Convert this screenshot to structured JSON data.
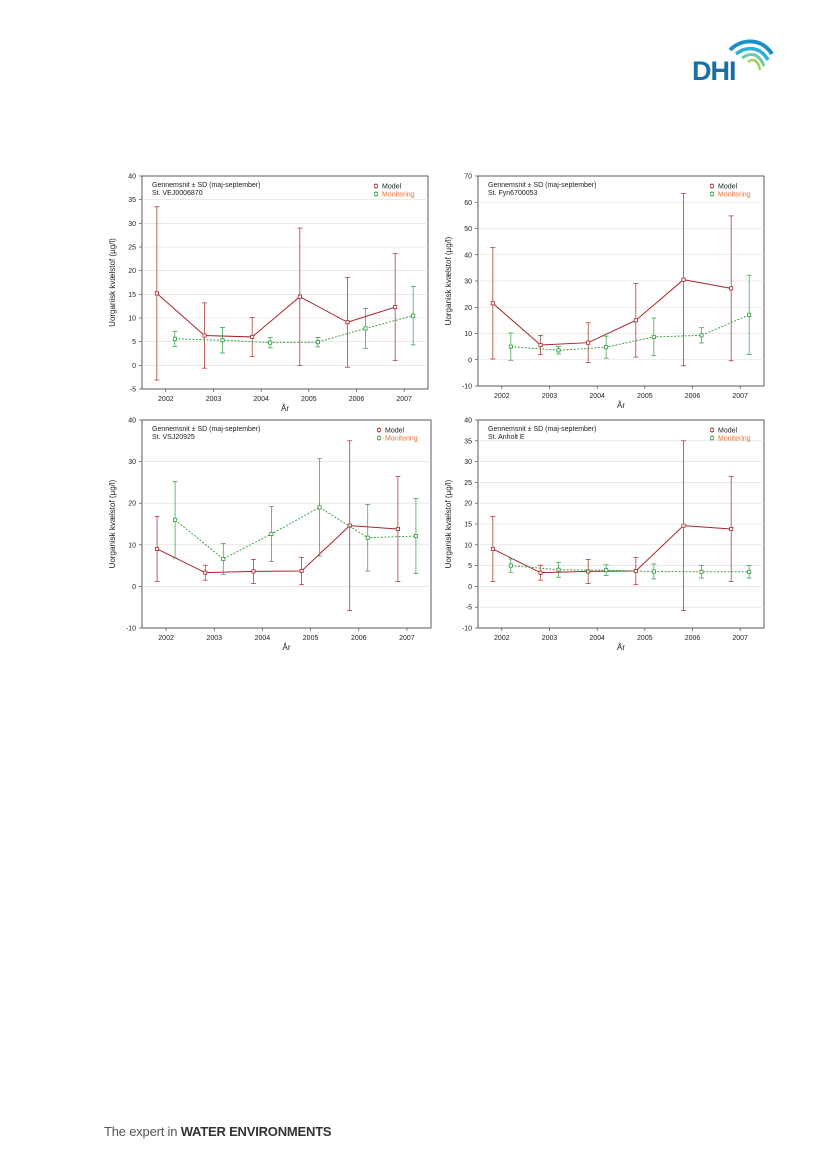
{
  "logo": {
    "text": "DHI"
  },
  "footer": {
    "prefix": "The expert in ",
    "emphasis": "WATER ENVIRONMENTS"
  },
  "legend": {
    "model": "Model",
    "monitoring": "Monitering"
  },
  "colors": {
    "model": "#a5262a",
    "monitoring": "#2f9a3a",
    "monitoring_label": "#f07030"
  },
  "chart_data": [
    {
      "type": "line",
      "title": "Gennemsnit ± SD (maj-september)",
      "subtitle": "St. VEJ0006870",
      "xlabel": "År",
      "ylabel": "Uorganisk kvælstof (µg/l)",
      "categories": [
        "2002",
        "2003",
        "2004",
        "2005",
        "2006",
        "2007"
      ],
      "ylim": [
        -5,
        40
      ],
      "yticks": [
        -5,
        0,
        5,
        10,
        15,
        20,
        25,
        30,
        35,
        40
      ],
      "legend_position": "top-right",
      "series": [
        {
          "name": "Model",
          "values": [
            15.2,
            6.3,
            6.0,
            14.5,
            9.1,
            12.3
          ],
          "sd": [
            18.3,
            6.9,
            4.1,
            14.5,
            9.5,
            11.3
          ]
        },
        {
          "name": "Monitering",
          "values": [
            5.6,
            5.3,
            4.8,
            4.9,
            7.8,
            10.5
          ],
          "sd": [
            1.6,
            2.7,
            1.1,
            1.0,
            4.2,
            6.2
          ]
        }
      ]
    },
    {
      "type": "line",
      "title": "Gennemsnit ± SD (maj-september)",
      "subtitle": "St. Fyn6700053",
      "xlabel": "År",
      "ylabel": "Uorganisk kvælstof (µg/l)",
      "categories": [
        "2002",
        "2003",
        "2004",
        "2005",
        "2006",
        "2007"
      ],
      "ylim": [
        -10,
        70
      ],
      "yticks": [
        -10,
        0,
        10,
        20,
        30,
        40,
        50,
        60,
        70
      ],
      "legend_position": "top-right",
      "series": [
        {
          "name": "Model",
          "values": [
            21.5,
            5.6,
            6.5,
            15.0,
            30.5,
            27.2
          ],
          "sd": [
            21.2,
            3.7,
            7.6,
            14.0,
            32.8,
            27.6
          ]
        },
        {
          "name": "Monitering",
          "values": [
            5.0,
            3.6,
            4.8,
            8.7,
            9.3,
            17.1
          ],
          "sd": [
            5.2,
            1.4,
            4.2,
            7.2,
            2.9,
            15.1
          ]
        }
      ]
    },
    {
      "type": "line",
      "title": "Gennemsnit ± SD (maj-september)",
      "subtitle": "St. VSJ20925",
      "xlabel": "År",
      "ylabel": "Uorganisk kvælstof (µg/l)",
      "categories": [
        "2002",
        "2003",
        "2004",
        "2005",
        "2006",
        "2007"
      ],
      "ylim": [
        -10,
        40
      ],
      "yticks": [
        -10,
        0,
        10,
        20,
        30,
        40
      ],
      "legend_position": "top-right",
      "series": [
        {
          "name": "Model",
          "values": [
            9.0,
            3.3,
            3.6,
            3.7,
            14.6,
            13.8
          ],
          "sd": [
            7.8,
            1.8,
            2.9,
            3.3,
            20.4,
            12.6
          ]
        },
        {
          "name": "Monitering",
          "values": [
            16.0,
            6.6,
            12.6,
            19.0,
            11.7,
            12.1
          ],
          "sd": [
            9.2,
            3.7,
            6.6,
            11.7,
            8.0,
            9.0
          ]
        }
      ]
    },
    {
      "type": "line",
      "title": "Gennemsnit ± SD (maj-september)",
      "subtitle": "St. Anholt E",
      "xlabel": "År",
      "ylabel": "Uorganisk kvælstof (µg/l)",
      "categories": [
        "2002",
        "2003",
        "2004",
        "2005",
        "2006",
        "2007"
      ],
      "ylim": [
        -10,
        40
      ],
      "yticks": [
        -10,
        -5,
        0,
        5,
        10,
        15,
        20,
        25,
        30,
        35,
        40
      ],
      "legend_position": "top-right",
      "series": [
        {
          "name": "Model",
          "values": [
            9.0,
            3.3,
            3.6,
            3.7,
            14.6,
            13.8
          ],
          "sd": [
            7.8,
            1.8,
            2.9,
            3.3,
            20.4,
            12.6
          ]
        },
        {
          "name": "Monitering",
          "values": [
            5.0,
            4.0,
            3.9,
            3.6,
            3.5,
            3.5
          ],
          "sd": [
            1.6,
            1.8,
            1.3,
            1.8,
            1.5,
            1.5
          ]
        }
      ]
    }
  ]
}
